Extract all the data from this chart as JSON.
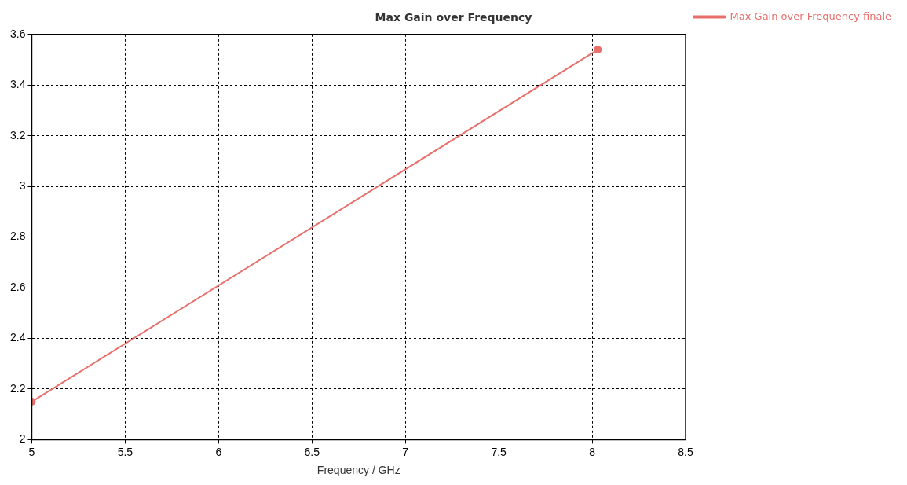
{
  "chart_data": {
    "type": "line",
    "title": "Max Gain over Frequency",
    "xlabel": "Frequency / GHz",
    "series": [
      {
        "name": "Max Gain over Frequency finale",
        "color": "#e8706c",
        "x": [
          5,
          8.03
        ],
        "values": [
          2.15,
          3.54
        ]
      }
    ],
    "xlim": [
      5,
      8.5
    ],
    "xticks": [
      5,
      5.5,
      6,
      6.5,
      7,
      7.5,
      8,
      8.5
    ],
    "ylim": [
      2,
      3.6
    ],
    "yticks": [
      2,
      2.2,
      2.4,
      2.6,
      2.8,
      3,
      3.2,
      3.4,
      3.6
    ],
    "grid": true,
    "legend": "top right",
    "marker": "circle",
    "line_style": "solid"
  }
}
